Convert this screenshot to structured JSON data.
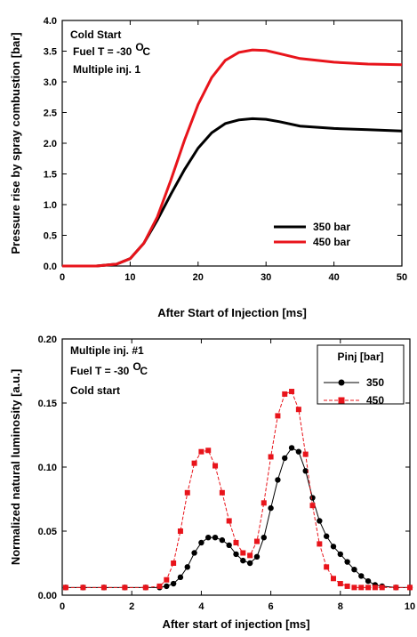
{
  "chart_data": [
    {
      "type": "line",
      "xlabel": "After Start of Injection [ms]",
      "ylabel": "Pressure rise by spray combustion [bar]",
      "xlim": [
        0,
        50
      ],
      "ylim": [
        0.0,
        4.0
      ],
      "xticks": [
        "0",
        "10",
        "20",
        "30",
        "40",
        "50"
      ],
      "yticks": [
        "0.0",
        "0.5",
        "1.0",
        "1.5",
        "2.0",
        "2.5",
        "3.0",
        "3.5",
        "4.0"
      ],
      "annotations": [
        "Cold Start",
        "Fuel T = -30",
        "O",
        "C",
        "Multiple inj. 1"
      ],
      "legend_position": "bottom-right",
      "series": [
        {
          "name": "350 bar",
          "color": "#000000",
          "x": [
            0,
            5,
            8,
            10,
            12,
            14,
            16,
            18,
            20,
            22,
            24,
            26,
            28,
            30,
            32,
            35,
            40,
            45,
            50
          ],
          "y": [
            0.0,
            0.0,
            0.03,
            0.12,
            0.37,
            0.75,
            1.17,
            1.57,
            1.92,
            2.17,
            2.32,
            2.38,
            2.4,
            2.39,
            2.35,
            2.28,
            2.24,
            2.22,
            2.2
          ]
        },
        {
          "name": "450 bar",
          "color": "#e8141b",
          "x": [
            0,
            5,
            8,
            10,
            12,
            14,
            16,
            18,
            20,
            22,
            24,
            26,
            28,
            30,
            32,
            35,
            40,
            45,
            50
          ],
          "y": [
            0.0,
            0.0,
            0.03,
            0.12,
            0.37,
            0.8,
            1.4,
            2.05,
            2.63,
            3.07,
            3.35,
            3.48,
            3.52,
            3.51,
            3.46,
            3.38,
            3.32,
            3.29,
            3.28
          ]
        }
      ]
    },
    {
      "type": "line",
      "xlabel": "After start of injection [ms]",
      "ylabel": "Normalized natural luminosity [a.u.]",
      "xlim": [
        0,
        10
      ],
      "ylim": [
        0.0,
        0.2
      ],
      "xticks": [
        "0",
        "2",
        "4",
        "6",
        "8",
        "10"
      ],
      "yticks": [
        "0.00",
        "0.05",
        "0.10",
        "0.15",
        "0.20"
      ],
      "annotations": [
        "Multiple inj. #1",
        "Fuel T = -30",
        "O",
        "C",
        "Cold start"
      ],
      "legend_title": "Pinj [bar]",
      "legend_position": "top-right",
      "series": [
        {
          "name": "350",
          "color": "#000000",
          "marker": "circle",
          "x": [
            0.1,
            0.6,
            1.2,
            1.8,
            2.4,
            2.8,
            3.0,
            3.2,
            3.4,
            3.6,
            3.8,
            4.0,
            4.2,
            4.4,
            4.6,
            4.8,
            5.0,
            5.2,
            5.4,
            5.6,
            5.8,
            6.0,
            6.2,
            6.4,
            6.6,
            6.8,
            7.0,
            7.2,
            7.4,
            7.6,
            7.8,
            8.0,
            8.2,
            8.4,
            8.6,
            8.8,
            9.0,
            9.2,
            9.6,
            10.0
          ],
          "y": [
            0.006,
            0.006,
            0.006,
            0.006,
            0.006,
            0.006,
            0.007,
            0.009,
            0.014,
            0.022,
            0.033,
            0.041,
            0.045,
            0.045,
            0.043,
            0.039,
            0.032,
            0.027,
            0.025,
            0.03,
            0.045,
            0.068,
            0.09,
            0.107,
            0.115,
            0.112,
            0.097,
            0.076,
            0.058,
            0.046,
            0.038,
            0.032,
            0.026,
            0.02,
            0.015,
            0.011,
            0.008,
            0.007,
            0.006,
            0.006
          ]
        },
        {
          "name": "450",
          "color": "#e8141b",
          "marker": "square",
          "x": [
            0.1,
            0.6,
            1.2,
            1.8,
            2.4,
            2.8,
            3.0,
            3.2,
            3.4,
            3.6,
            3.8,
            4.0,
            4.2,
            4.4,
            4.6,
            4.8,
            5.0,
            5.2,
            5.4,
            5.6,
            5.8,
            6.0,
            6.2,
            6.4,
            6.6,
            6.8,
            7.0,
            7.2,
            7.4,
            7.6,
            7.8,
            8.0,
            8.2,
            8.4,
            8.6,
            8.8,
            9.0,
            9.2,
            9.6,
            10.0
          ],
          "y": [
            0.006,
            0.006,
            0.006,
            0.006,
            0.006,
            0.007,
            0.012,
            0.025,
            0.05,
            0.08,
            0.103,
            0.112,
            0.113,
            0.101,
            0.08,
            0.058,
            0.041,
            0.033,
            0.031,
            0.042,
            0.072,
            0.108,
            0.14,
            0.157,
            0.159,
            0.145,
            0.11,
            0.07,
            0.04,
            0.022,
            0.013,
            0.009,
            0.007,
            0.006,
            0.006,
            0.006,
            0.006,
            0.006,
            0.006,
            0.006
          ]
        }
      ]
    }
  ]
}
